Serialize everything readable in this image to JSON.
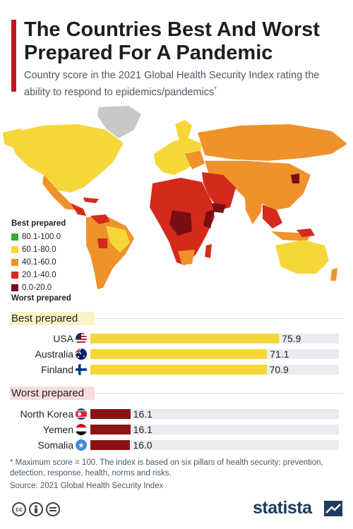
{
  "header": {
    "title": "The Countries Best And Worst Prepared For A Pandemic",
    "subtitle": "Country score in the 2021 Global Health Security Index rating the ability to respond to epidemics/pandemics",
    "subtitle_mark": "*"
  },
  "legend": {
    "top_label": "Best prepared",
    "bottom_label": "Worst prepared",
    "items": [
      {
        "label": "80.1-100.0",
        "color": "#3aa935"
      },
      {
        "label": "60.1-80.0",
        "color": "#f6d73a"
      },
      {
        "label": "40.1-60.0",
        "color": "#f0922b"
      },
      {
        "label": "20.1-40.0",
        "color": "#d42a1b"
      },
      {
        "label": "0.0-20.0",
        "color": "#7a0e14"
      }
    ]
  },
  "chart_data": [
    {
      "type": "bar",
      "title": "Best prepared",
      "categories": [
        "USA",
        "Australia",
        "Finland"
      ],
      "values": [
        75.9,
        71.1,
        70.9
      ],
      "xlim": [
        0,
        100
      ],
      "color": "#f6d73a"
    },
    {
      "type": "bar",
      "title": "Worst prepared",
      "categories": [
        "North Korea",
        "Yemen",
        "Somalia"
      ],
      "values": [
        16.1,
        16.1,
        16.0
      ],
      "xlim": [
        0,
        100
      ],
      "color": "#8b1318"
    }
  ],
  "section_colors": {
    "best": "#fbf3c8",
    "worst": "#f6dcdf"
  },
  "footnote": "* Maximum score = 100. The index is based on six pillars of health security: prevention, detection, response, health, norms and risks.",
  "source": "Source: 2021 Global Health Security Index",
  "license_icons": [
    "cc-icon",
    "attribution-icon",
    "no-derivatives-icon"
  ],
  "brand": "statista"
}
